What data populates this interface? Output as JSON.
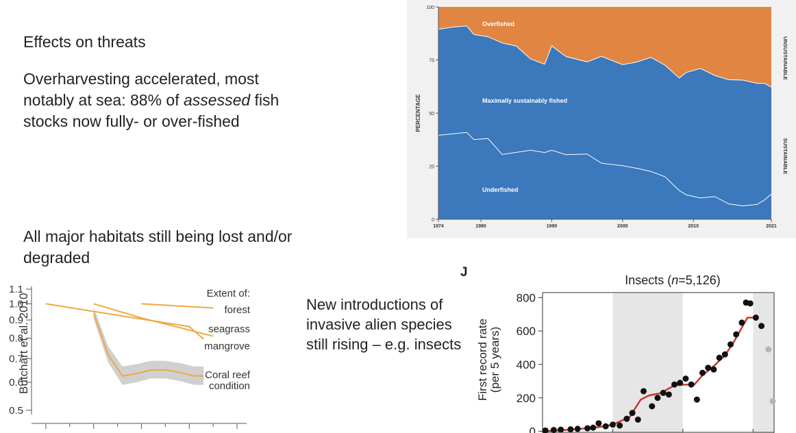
{
  "heading": "Effects on threats",
  "paragraphs": {
    "p1_before": "Overharvesting accelerated, most notably at sea: 88% of ",
    "p1_em": "assessed",
    "p1_after": " fish stocks now fully- or over-fished",
    "p2": "All major habitats still being lost and/or degraded",
    "p3": "New introductions of invasive alien species still rising – e.g. insects"
  },
  "citation": "Butchart et al. 2010",
  "colors": {
    "orange": "#e08642",
    "blue": "#3b78bc",
    "habitat_line": "#f0a640",
    "band": "#d0d0d0",
    "red_line": "#c8362c"
  },
  "chart_data": [
    {
      "type": "area",
      "ylabel": "PERCENTAGE",
      "ylim": [
        0,
        100
      ],
      "yticks": [
        0,
        25,
        50,
        75,
        100
      ],
      "xticks": [
        1974,
        1980,
        1990,
        2000,
        2010,
        2021
      ],
      "xlim": [
        1974,
        2021
      ],
      "side_labels": [
        "UNSUSTAINABLE",
        "SUSTAINABLE"
      ],
      "region_labels": [
        "Overfished",
        "Maximally sustainably fished",
        "Underfished"
      ],
      "x": [
        1974,
        1976,
        1978,
        1979,
        1981,
        1983,
        1985,
        1987,
        1989,
        1990,
        1992,
        1995,
        1997,
        2000,
        2002,
        2004,
        2006,
        2008,
        2009,
        2011,
        2013,
        2015,
        2017,
        2019,
        2020,
        2021
      ],
      "series": [
        {
          "name": "Underfished",
          "values": [
            39.5,
            40.2,
            40.9,
            37.5,
            38.0,
            30.5,
            31.5,
            32.5,
            31.4,
            32.5,
            30.4,
            30.7,
            26.4,
            25.2,
            24.0,
            22.5,
            20.0,
            13.5,
            11.5,
            10.0,
            10.7,
            7.2,
            6.3,
            7.0,
            9.0,
            11.8
          ]
        },
        {
          "name": "Maximally sustainably fished",
          "values": [
            49.9,
            50.3,
            50.1,
            49.5,
            47.9,
            52.5,
            50.0,
            43.0,
            41.6,
            49.1,
            46.2,
            43.4,
            50.3,
            47.6,
            50.0,
            53.7,
            52.5,
            53.0,
            57.6,
            61.0,
            57.0,
            58.5,
            59.2,
            57.0,
            55.0,
            50.4
          ]
        },
        {
          "name": "Overfished",
          "values": [
            10.6,
            9.5,
            9.0,
            13.0,
            14.1,
            17.0,
            18.5,
            24.5,
            27.0,
            18.4,
            23.4,
            25.9,
            23.3,
            27.2,
            26.0,
            23.8,
            27.5,
            33.5,
            30.9,
            29.0,
            32.3,
            34.3,
            34.5,
            36.0,
            36.0,
            37.8
          ]
        }
      ]
    },
    {
      "type": "line",
      "legend_title": "Extent of:",
      "yticks": [
        0.5,
        0.6,
        0.7,
        0.8,
        0.9,
        1.0,
        1.1
      ],
      "ylim": [
        0.48,
        1.12
      ],
      "xticks": [
        1970,
        1980,
        1990,
        2000,
        2010
      ],
      "xlim": [
        1967,
        2012
      ],
      "series": [
        {
          "name": "forest",
          "x": [
            1990,
            2005
          ],
          "values": [
            1.0,
            0.973
          ]
        },
        {
          "name": "seagrass",
          "x": [
            1970,
            2000,
            2003
          ],
          "values": [
            1.0,
            0.862,
            0.795
          ]
        },
        {
          "name": "mangrove",
          "x": [
            1980,
            1990,
            2005
          ],
          "values": [
            1.0,
            0.912,
            0.81
          ]
        },
        {
          "name": "Coral reef condition",
          "x": [
            1980,
            1983,
            1986,
            1989,
            1992,
            1995,
            1998,
            2001,
            2003
          ],
          "values": [
            0.94,
            0.72,
            0.625,
            0.635,
            0.65,
            0.65,
            0.64,
            0.625,
            0.625
          ]
        }
      ]
    },
    {
      "type": "scatter",
      "panel_letter": "J",
      "title": "Insects (n=5,126)",
      "ylabel": "First record rate (per 5 years)",
      "yticks": [
        0,
        200,
        400,
        600,
        800
      ],
      "ylim": [
        -10,
        830
      ],
      "xlim": [
        1850,
        2015
      ],
      "points": [
        [
          1852,
          5
        ],
        [
          1858,
          8
        ],
        [
          1863,
          10
        ],
        [
          1870,
          12
        ],
        [
          1875,
          15
        ],
        [
          1882,
          18
        ],
        [
          1886,
          22
        ],
        [
          1890,
          48
        ],
        [
          1895,
          30
        ],
        [
          1900,
          40
        ],
        [
          1905,
          35
        ],
        [
          1910,
          75
        ],
        [
          1914,
          110
        ],
        [
          1918,
          70
        ],
        [
          1922,
          240
        ],
        [
          1928,
          150
        ],
        [
          1932,
          200
        ],
        [
          1936,
          230
        ],
        [
          1940,
          220
        ],
        [
          1944,
          280
        ],
        [
          1948,
          290
        ],
        [
          1952,
          315
        ],
        [
          1956,
          280
        ],
        [
          1960,
          190
        ],
        [
          1964,
          350
        ],
        [
          1968,
          380
        ],
        [
          1972,
          370
        ],
        [
          1976,
          440
        ],
        [
          1980,
          460
        ],
        [
          1984,
          520
        ],
        [
          1988,
          580
        ],
        [
          1992,
          650
        ],
        [
          1995,
          770
        ],
        [
          1998,
          765
        ],
        [
          2002,
          680
        ],
        [
          2006,
          630
        ],
        [
          2011,
          490
        ],
        [
          2014,
          180
        ]
      ],
      "fit": [
        [
          1850,
          0
        ],
        [
          1870,
          10
        ],
        [
          1890,
          25
        ],
        [
          1900,
          40
        ],
        [
          1912,
          85
        ],
        [
          1920,
          190
        ],
        [
          1926,
          215
        ],
        [
          1934,
          228
        ],
        [
          1944,
          275
        ],
        [
          1952,
          280
        ],
        [
          1958,
          278
        ],
        [
          1964,
          335
        ],
        [
          1972,
          390
        ],
        [
          1980,
          455
        ],
        [
          1986,
          530
        ],
        [
          1992,
          620
        ],
        [
          1996,
          680
        ],
        [
          2003,
          680
        ]
      ]
    }
  ]
}
